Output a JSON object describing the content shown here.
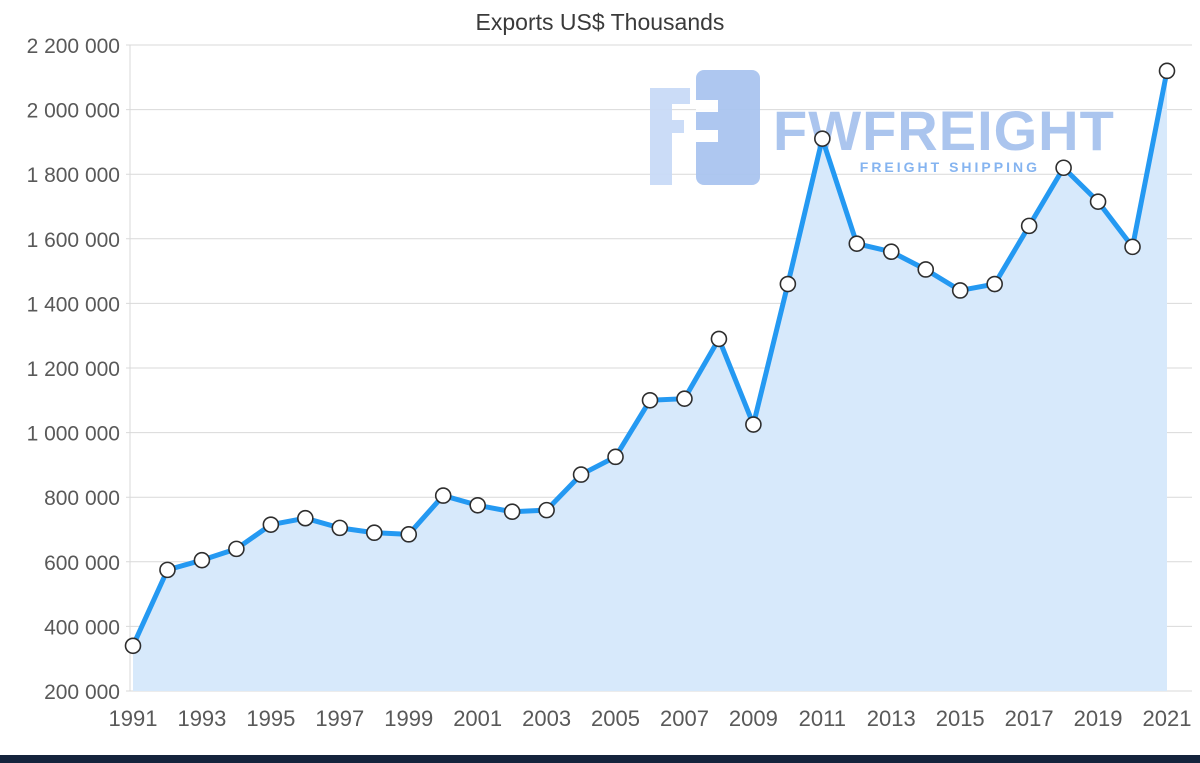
{
  "colors": {
    "line": "#2499f2",
    "fill": "#d7e9fb",
    "grid": "#d9d9d9",
    "axis_label": "#595959",
    "marker_fill": "#ffffff",
    "marker_stroke": "#2e2e2e",
    "watermark_brand": "#a7c2ee",
    "watermark_tagline": "#7fb0f0",
    "bottom_bar": "#14233c"
  },
  "watermark": {
    "brand": "FWFREIGHT",
    "tagline": "FREIGHT SHIPPING",
    "logo": "fwfreight-monogram"
  },
  "chart_data": {
    "type": "area",
    "title": "Exports US$ Thousands",
    "series_name": "Exports",
    "x": [
      1991,
      1992,
      1993,
      1994,
      1995,
      1996,
      1997,
      1998,
      1999,
      2000,
      2001,
      2002,
      2003,
      2004,
      2005,
      2006,
      2007,
      2008,
      2009,
      2010,
      2011,
      2012,
      2013,
      2014,
      2015,
      2016,
      2017,
      2018,
      2019,
      2020,
      2021
    ],
    "values": [
      340000,
      575000,
      605000,
      640000,
      715000,
      735000,
      705000,
      690000,
      685000,
      805000,
      775000,
      755000,
      760000,
      870000,
      925000,
      1100000,
      1105000,
      1290000,
      1025000,
      1460000,
      1910000,
      1585000,
      1560000,
      1505000,
      1440000,
      1460000,
      1640000,
      1820000,
      1715000,
      1575000,
      2120000
    ],
    "ylim": [
      200000,
      2200000
    ],
    "ytick_step": 200000,
    "xticks": [
      1991,
      1993,
      1995,
      1997,
      1999,
      2001,
      2003,
      2005,
      2007,
      2009,
      2011,
      2013,
      2015,
      2017,
      2019,
      2021
    ],
    "grid": true,
    "legend": "none",
    "xlabel": "",
    "ylabel": ""
  }
}
